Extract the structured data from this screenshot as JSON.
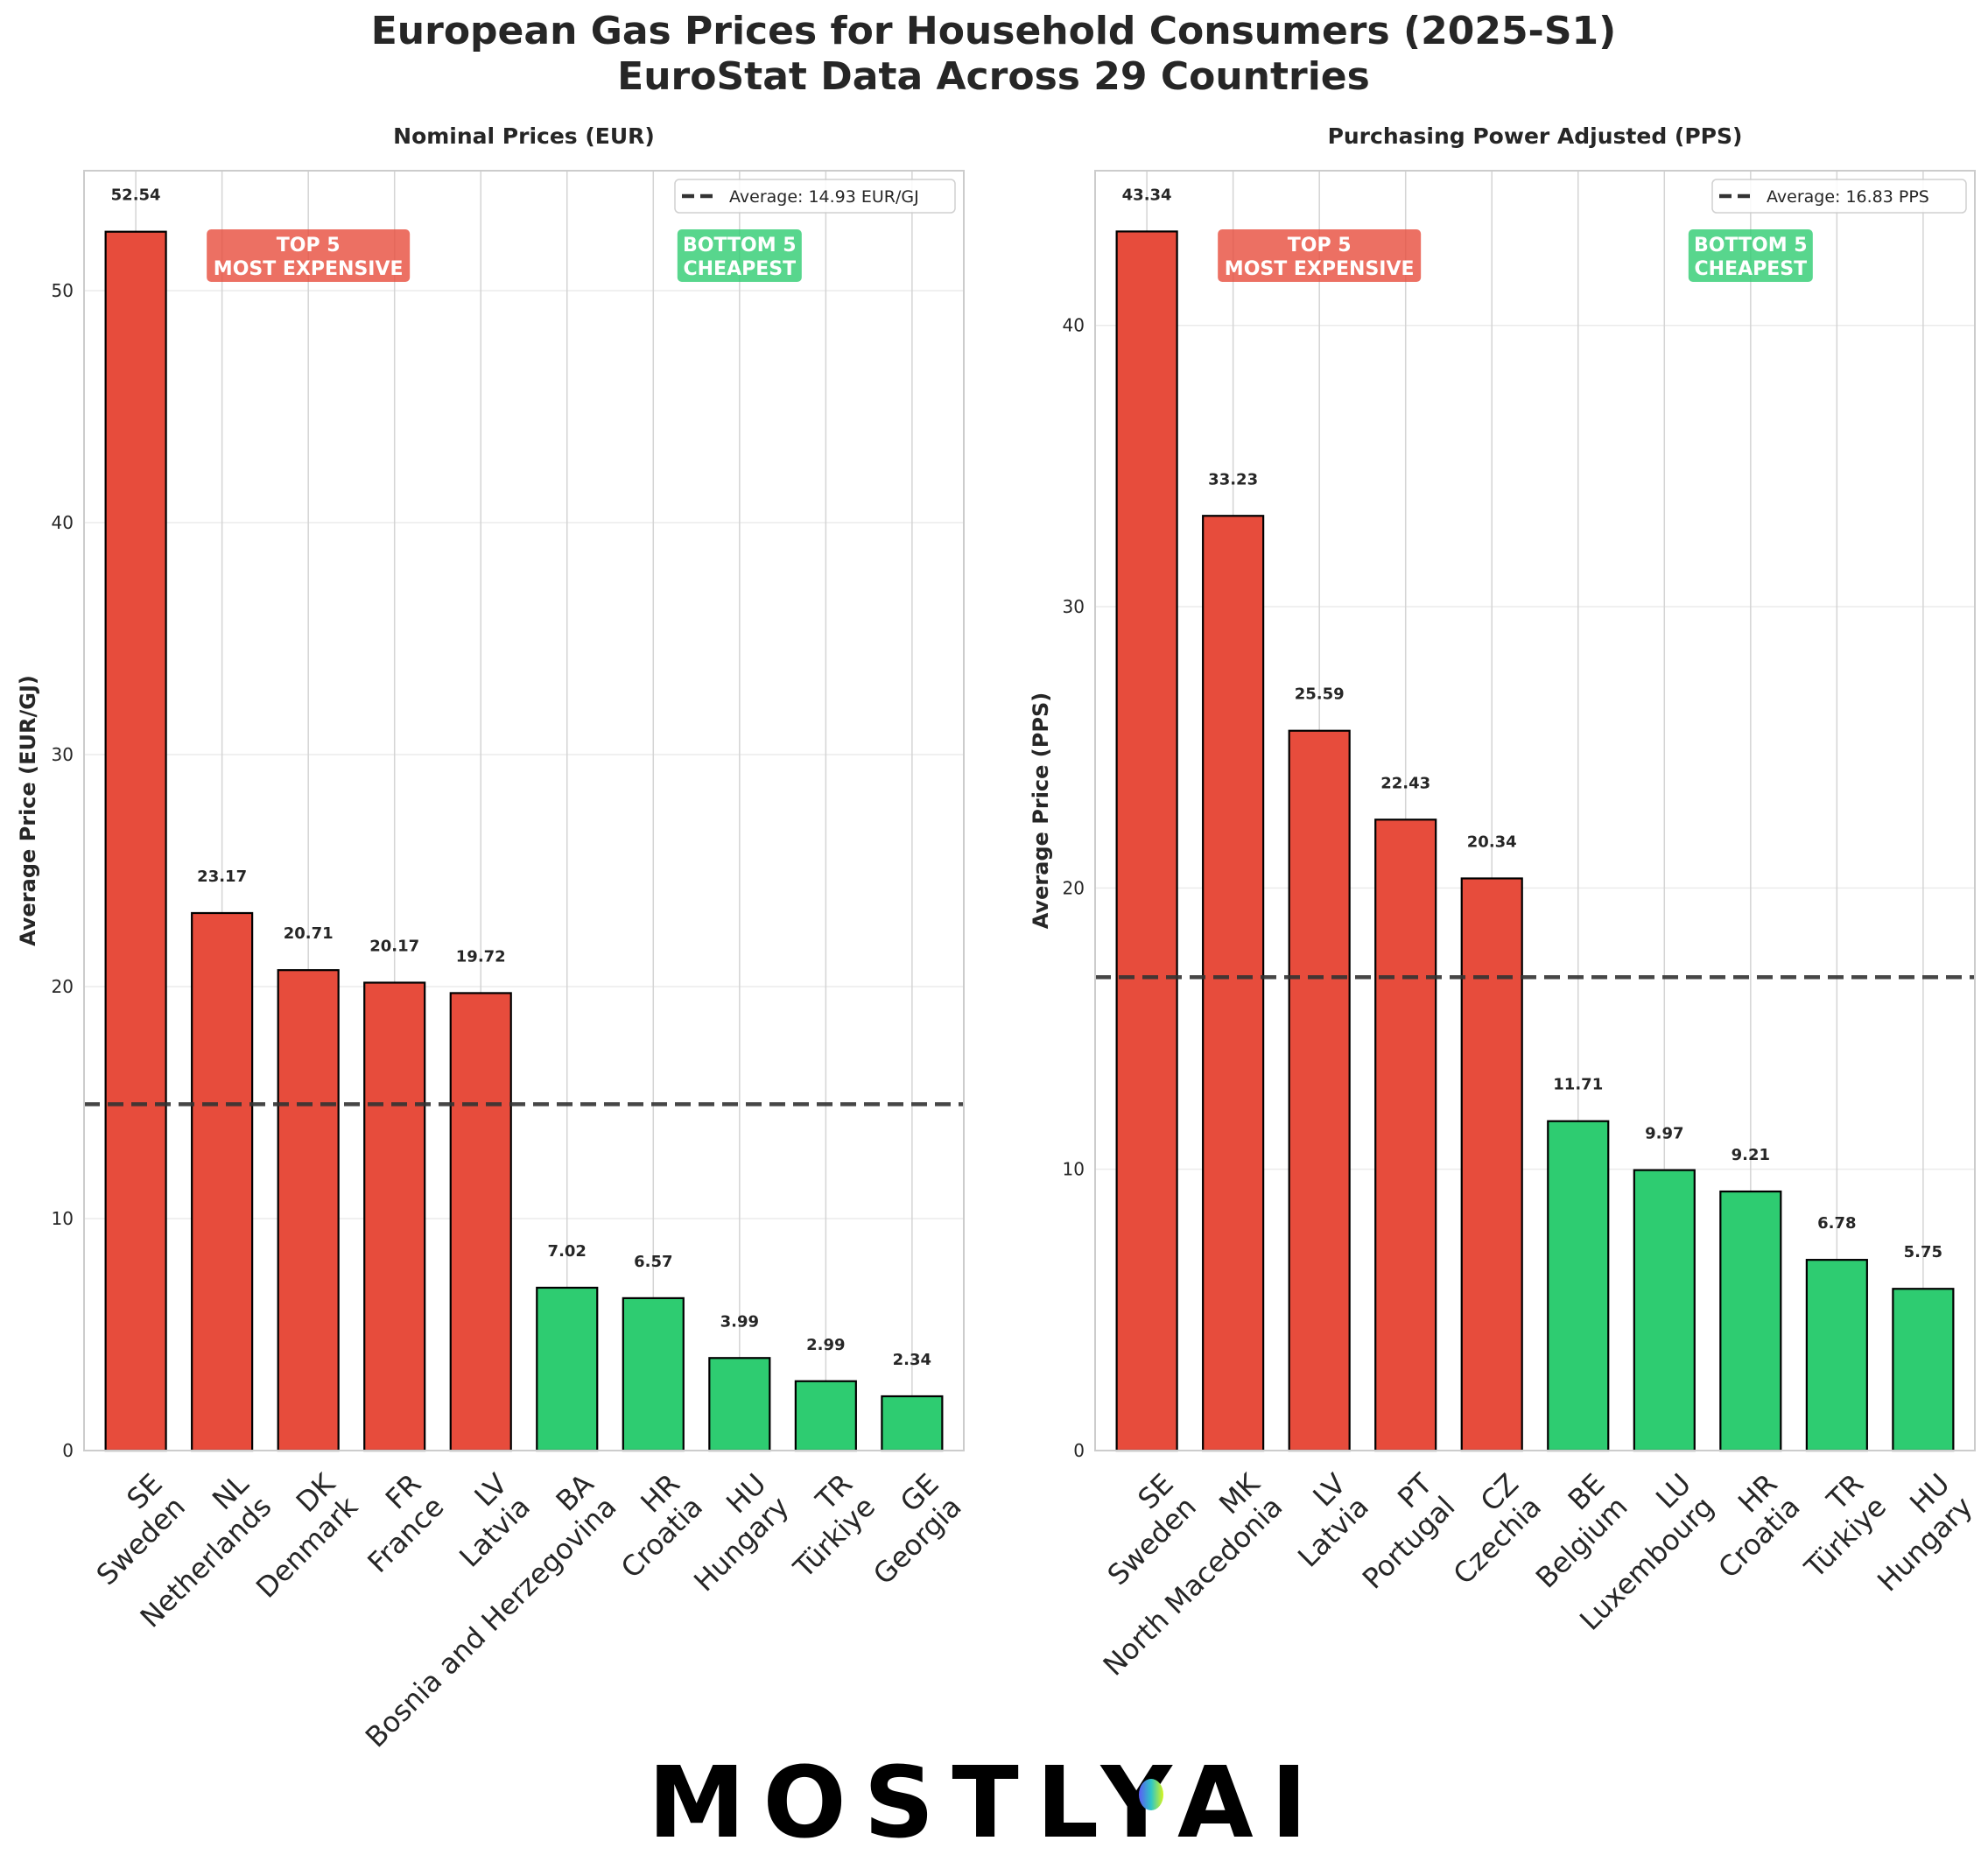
{
  "figure": {
    "title_line1": "European Gas Prices for Household Consumers (2025-S1)",
    "title_line2": "EuroStat Data Across 29 Countries",
    "logo": {
      "left": "MOSTLY",
      "right": "AI"
    },
    "colors": {
      "top": "#e74c3c",
      "bottom": "#2ecc71",
      "bar_edge": "#000000",
      "avg_line": "#333333",
      "top_badge": "#e74c3c",
      "bottom_badge": "#2ecc71"
    }
  },
  "chart_data": [
    {
      "type": "bar",
      "title": "Nominal Prices (EUR)",
      "xlabel": "",
      "ylabel": "Average Price (EUR/GJ)",
      "ylim": [
        0,
        55.17
      ],
      "yticks": [
        0,
        10,
        20,
        30,
        40,
        50
      ],
      "grid": true,
      "categories": [
        "SE\nSweden",
        "NL\nNetherlands",
        "DK\nDenmark",
        "FR\nFrance",
        "LV\nLatvia",
        "BA\nBosnia and Herzegovina",
        "HR\nCroatia",
        "HU\nHungary",
        "TR\nTürkiye",
        "GE\nGeorgia"
      ],
      "codes": [
        "SE",
        "NL",
        "DK",
        "FR",
        "LV",
        "BA",
        "HR",
        "HU",
        "TR",
        "GE"
      ],
      "names": [
        "Sweden",
        "Netherlands",
        "Denmark",
        "France",
        "Latvia",
        "Bosnia and Herzegovina",
        "Croatia",
        "Hungary",
        "Türkiye",
        "Georgia"
      ],
      "values": [
        52.54,
        23.17,
        20.71,
        20.17,
        19.72,
        7.02,
        6.57,
        3.99,
        2.99,
        2.34
      ],
      "value_labels": [
        "52.54",
        "23.17",
        "20.71",
        "20.17",
        "19.72",
        "7.02",
        "6.57",
        "3.99",
        "2.99",
        "2.34"
      ],
      "groups": [
        "top",
        "top",
        "top",
        "top",
        "top",
        "bottom",
        "bottom",
        "bottom",
        "bottom",
        "bottom"
      ],
      "average": 14.93,
      "legend": {
        "label": "Average: 14.93 EUR/GJ",
        "placement": "top-right"
      },
      "annotations": [
        {
          "group": "top",
          "line1": "TOP 5",
          "line2": "MOST EXPENSIVE"
        },
        {
          "group": "bottom",
          "line1": "BOTTOM 5",
          "line2": "CHEAPEST"
        }
      ]
    },
    {
      "type": "bar",
      "title": "Purchasing Power Adjusted (PPS)",
      "xlabel": "",
      "ylabel": "Average Price (PPS)",
      "ylim": [
        0,
        45.5
      ],
      "yticks": [
        0,
        10,
        20,
        30,
        40
      ],
      "grid": true,
      "categories": [
        "SE\nSweden",
        "MK\nNorth Macedonia",
        "LV\nLatvia",
        "PT\nPortugal",
        "CZ\nCzechia",
        "BE\nBelgium",
        "LU\nLuxembourg",
        "HR\nCroatia",
        "TR\nTürkiye",
        "HU\nHungary"
      ],
      "codes": [
        "SE",
        "MK",
        "LV",
        "PT",
        "CZ",
        "BE",
        "LU",
        "HR",
        "TR",
        "HU"
      ],
      "names": [
        "Sweden",
        "North Macedonia",
        "Latvia",
        "Portugal",
        "Czechia",
        "Belgium",
        "Luxembourg",
        "Croatia",
        "Türkiye",
        "Hungary"
      ],
      "values": [
        43.34,
        33.23,
        25.59,
        22.43,
        20.34,
        11.71,
        9.97,
        9.21,
        6.78,
        5.75
      ],
      "value_labels": [
        "43.34",
        "33.23",
        "25.59",
        "22.43",
        "20.34",
        "11.71",
        "9.97",
        "9.21",
        "6.78",
        "5.75"
      ],
      "groups": [
        "top",
        "top",
        "top",
        "top",
        "top",
        "bottom",
        "bottom",
        "bottom",
        "bottom",
        "bottom"
      ],
      "average": 16.83,
      "legend": {
        "label": "Average: 16.83 PPS",
        "placement": "top-right"
      },
      "annotations": [
        {
          "group": "top",
          "line1": "TOP 5",
          "line2": "MOST EXPENSIVE"
        },
        {
          "group": "bottom",
          "line1": "BOTTOM 5",
          "line2": "CHEAPEST"
        }
      ]
    }
  ]
}
